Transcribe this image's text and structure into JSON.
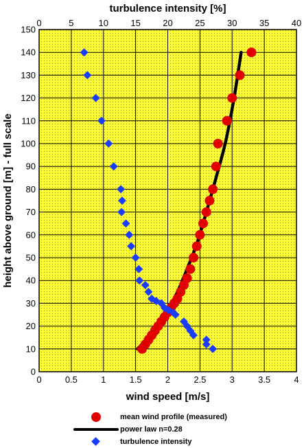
{
  "chart_data": {
    "type": "scatter",
    "title": "",
    "xlabel": "wind speed [m/s]",
    "x2label": "turbulence intensity [%]",
    "ylabel": "height above ground [m]  - full scale",
    "xlim": [
      0,
      4
    ],
    "x2lim": [
      0,
      40
    ],
    "ylim": [
      0,
      150
    ],
    "xticks": [
      "0",
      "0.5",
      "1",
      "1.5",
      "2",
      "2.5",
      "3",
      "3.5",
      "4"
    ],
    "x2ticks": [
      "0",
      "5",
      "10",
      "15",
      "20",
      "25",
      "30",
      "35",
      "40"
    ],
    "yticks": [
      "0",
      "10",
      "20",
      "30",
      "40",
      "50",
      "60",
      "70",
      "80",
      "90",
      "100",
      "110",
      "120",
      "130",
      "140",
      "150"
    ],
    "grid": true,
    "background_color": "#ffff33",
    "legend_position": "below",
    "series": [
      {
        "name": "mean wind profile (measured)",
        "kind": "scatter",
        "axis": "x",
        "marker": "circle",
        "color": "#e00000",
        "x": [
          1.6,
          1.65,
          1.7,
          1.75,
          1.8,
          1.85,
          1.9,
          1.95,
          2.0,
          2.05,
          2.1,
          2.15,
          2.2,
          2.25,
          2.3,
          2.35,
          2.4,
          2.45,
          2.5,
          2.55,
          2.6,
          2.65,
          2.7,
          2.75,
          2.78,
          2.92,
          3.0,
          3.12,
          3.3
        ],
        "y": [
          10,
          12,
          14,
          16,
          18,
          20,
          22,
          24,
          26,
          28,
          30,
          32,
          35,
          38,
          41,
          45,
          50,
          55,
          60,
          65,
          70,
          75,
          80,
          90,
          100,
          110,
          120,
          130,
          140
        ]
      },
      {
        "name": "power law n=0.28",
        "kind": "line",
        "axis": "x",
        "color": "#000000",
        "x": [
          1.53,
          1.7,
          1.85,
          2.0,
          2.15,
          2.3,
          2.45,
          2.6,
          2.75,
          2.9,
          3.03,
          3.14
        ],
        "y": [
          10,
          15,
          20,
          27,
          35,
          45,
          56,
          70,
          85,
          101,
          120,
          140
        ]
      },
      {
        "name": "turbulence intensity",
        "kind": "scatter",
        "axis": "x2",
        "marker": "diamond",
        "color": "#1a3cff",
        "x": [
          7.0,
          7.5,
          8.8,
          9.7,
          10.8,
          11.6,
          12.7,
          12.9,
          12.8,
          13.5,
          14.0,
          14.3,
          15.0,
          15.5,
          15.6,
          16.5,
          17.0,
          17.5,
          18.2,
          19.0,
          19.5,
          20.1,
          20.8,
          21.2,
          22.5,
          23.0,
          23.5,
          24.0,
          26.0,
          26.0,
          27.0
        ],
        "y": [
          140,
          130,
          120,
          110,
          100,
          90,
          80,
          75,
          70,
          65,
          60,
          55,
          50,
          45,
          40,
          38,
          35,
          32,
          31,
          30,
          28,
          27,
          26,
          25,
          22,
          20,
          18,
          16,
          14,
          12,
          10
        ]
      }
    ]
  }
}
